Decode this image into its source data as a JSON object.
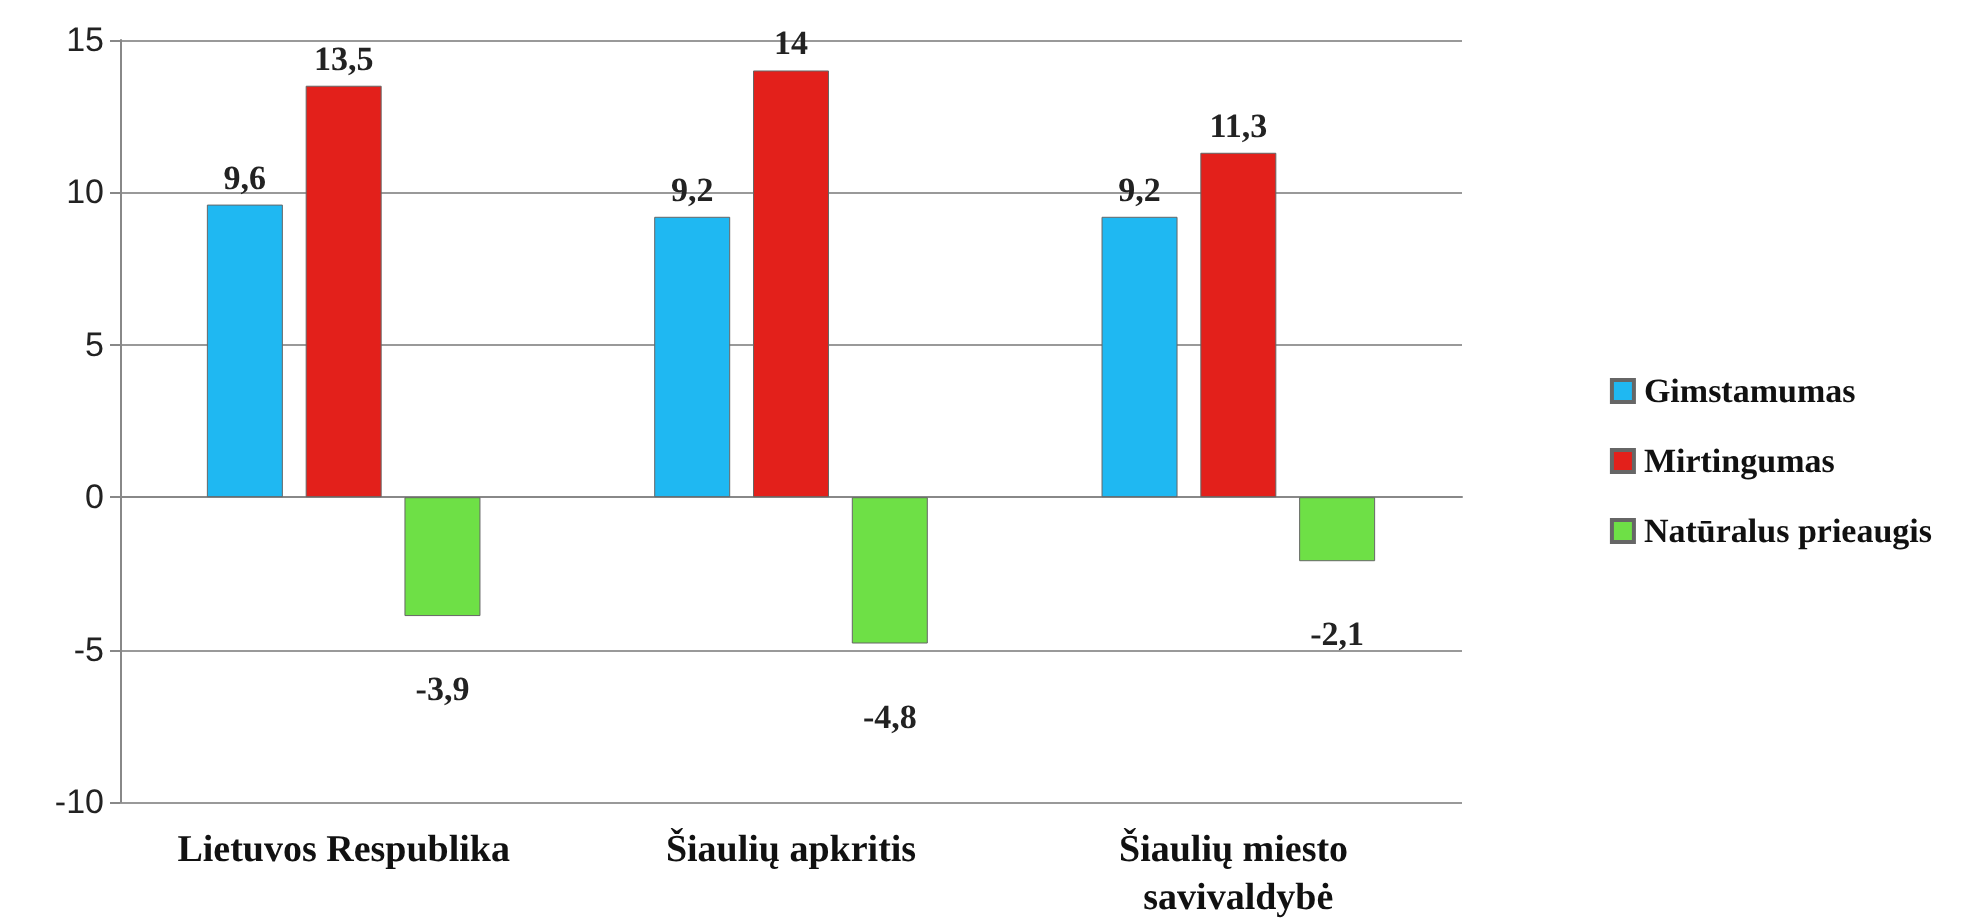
{
  "chart_data": {
    "type": "bar",
    "categories": [
      "Lietuvos Respublika",
      "Šiaulių apkritis",
      "Šiaulių miesto savivaldybė"
    ],
    "series": [
      {
        "name": "Gimstamumas",
        "color": "#1fb8f2",
        "values": [
          9.6,
          9.2,
          9.2
        ],
        "value_labels": [
          "9,6",
          "9,2",
          "9,2"
        ]
      },
      {
        "name": "Mirtingumas",
        "color": "#e3201b",
        "values": [
          13.5,
          14,
          11.3
        ],
        "value_labels": [
          "13,5",
          "14",
          "11,3"
        ]
      },
      {
        "name": "Natūralus prieaugis",
        "color": "#6ee046",
        "values": [
          -3.9,
          -4.8,
          -2.1
        ],
        "value_labels": [
          "-3,9",
          "-4,8",
          "-2,1"
        ]
      }
    ],
    "ylim": [
      -10,
      15
    ],
    "yticks": [
      -10,
      -5,
      0,
      5,
      10,
      15
    ],
    "grid": "y",
    "legend": "right"
  }
}
